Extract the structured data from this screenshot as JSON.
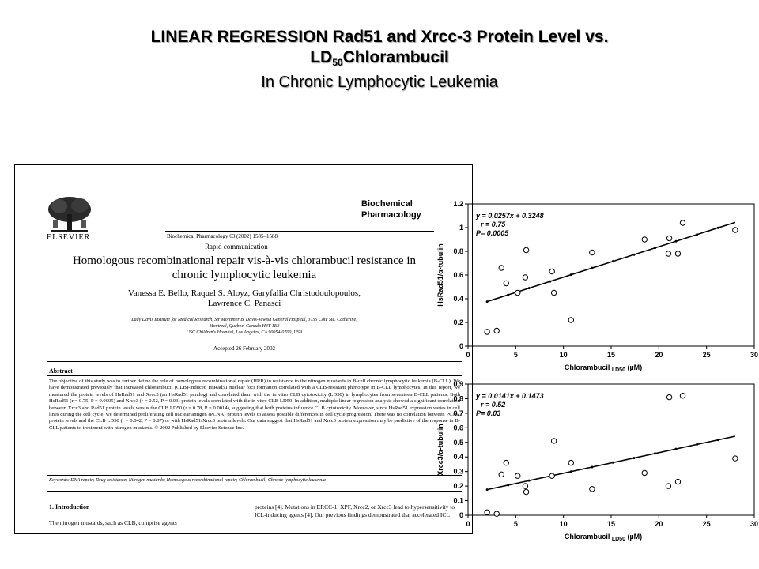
{
  "slide": {
    "title_line1": "LINEAR REGRESSION Rad51 and Xrcc-3 Protein Level vs.",
    "title_line2_pre": "LD",
    "title_line2_sub": "50",
    "title_line2_post": "Chlorambucil",
    "subtitle": "In Chronic Lymphocytic Leukemia"
  },
  "paper": {
    "publisher": "ELSEVIER",
    "journal_line1": "Biochemical",
    "journal_line2": "Pharmacology",
    "citation": "Biochemical Pharmacology 63 (2002) 1585–1588",
    "section": "Rapid communication",
    "title": "Homologous recombinational repair vis-à-vis chlorambucil resistance in chronic lymphocytic leukemia",
    "authors_line1": "Vanessa E. Bello, Raquel S. Aloyz, Garyfallia Christodoulopoulos,",
    "authors_line2": "Lawrence C. Panasci",
    "affiliation_line1": "Lady Davis Institute for Medical Research, Sir Mortimer B. Davis-Jewish General Hospital, 3755 Côte Ste. Catherine,",
    "affiliation_line2": "Montreal, Quebec, Canada H3T-1E2",
    "affiliation_line3": "USC Children's Hospital, Los Angeles, CA 90054-0700, USA",
    "accepted": "Accepted 26 February 2002",
    "abstract_heading": "Abstract",
    "abstract_text": "The objective of this study was to further define the role of homologous recombinational repair (HRR) in resistance to the nitrogen mustards in B-cell chronic lymphocytic leukemia (B-CLL). We have demonstrated previously that increased chlorambucil (CLB)-induced HsRad51 nuclear foci formation correlated with a CLB-resistant phenotype in B-CLL lymphocytes. In this report, we measured the protein levels of HsRad51 and Xrcc3 (an HsRad51 paralog) and correlated them with the in vitro CLB cytotoxicity (LD50) in lymphocytes from seventeen B-CLL patients. Both HsRad51 (r = 0.75, P = 0.0005) and Xrcc3 (r = 0.52, P = 0.03) protein levels correlated with the in vitro CLB LD50. In addition, multiple linear regression analysis showed a significant correlation between Xrcc3 and Rad51 protein levels versus the CLB LD50 (r = 0.78, P = 0.0014), suggesting that both proteins influence CLB cytotoxicity. Moreover, since HsRad51 expression varies in cell lines during the cell cycle, we determined proliferating cell nuclear antigen (PCNA) protein levels to assess possible differences in cell cycle progression. There was no correlation between PCNA protein levels and the CLB LD50 (r = 0.042, P = 0.87) or with HsRad51/Xrcc3 protein levels. Our data suggest that HsRad51 and Xrcc3 protein expression may be predictive of the response in B-CLL patients to treatment with nitrogen mustards. © 2002 Published by Elsevier Science Inc.",
    "keywords": "Keywords: DNA repair; Drug resistance; Nitrogen mustards; Homologous recombinational repair; Chlorambucil; Chronic lymphocytic leukemia",
    "intro_heading": "1. Introduction",
    "intro_left": "The nitrogen mustards, such as CLB, comprise agents",
    "intro_right": "proteins [4]. Mutations in ERCC-1, XPF, Xrcc2, or Xrcc3 lead to hypersensitivity to ICL-inducing agents [4]. Our previous findings demonstrated that accelerated ICL"
  },
  "chart_data": [
    {
      "type": "scatter",
      "ylabel": "HsRad51/α-tubulin",
      "xlabel_pre": "Chlorambucil",
      "xlabel_sub": "LD50",
      "xlabel_post": "(µM)",
      "equation": "y = 0.0257x + 0.3248",
      "r_text": "r = 0.75",
      "p_text": "P= 0.0005",
      "xlim": [
        0,
        30
      ],
      "ylim": [
        0,
        1.2
      ],
      "xticks": [
        "0",
        "5",
        "10",
        "15",
        "20",
        "25",
        "30"
      ],
      "yticks": [
        "0",
        "0.2",
        "0.4",
        "0.6",
        "0.8",
        "1",
        "1.2"
      ],
      "fit": {
        "slope": 0.0257,
        "intercept": 0.3248,
        "x_range": [
          2,
          28
        ]
      },
      "points": [
        {
          "x": 2.0,
          "y": 0.12
        },
        {
          "x": 3.0,
          "y": 0.13
        },
        {
          "x": 3.5,
          "y": 0.66
        },
        {
          "x": 4.0,
          "y": 0.53
        },
        {
          "x": 5.2,
          "y": 0.45
        },
        {
          "x": 6.0,
          "y": 0.58
        },
        {
          "x": 6.1,
          "y": 0.81
        },
        {
          "x": 8.8,
          "y": 0.63
        },
        {
          "x": 9.0,
          "y": 0.45
        },
        {
          "x": 10.8,
          "y": 0.22
        },
        {
          "x": 13.0,
          "y": 0.79
        },
        {
          "x": 18.5,
          "y": 0.9
        },
        {
          "x": 21.0,
          "y": 0.78
        },
        {
          "x": 21.1,
          "y": 0.91
        },
        {
          "x": 22.0,
          "y": 0.78
        },
        {
          "x": 22.5,
          "y": 1.04
        },
        {
          "x": 28.0,
          "y": 0.98
        }
      ]
    },
    {
      "type": "scatter",
      "ylabel": "Xrcc3/α-tubulin",
      "xlabel_pre": "Chlorambucil",
      "xlabel_sub": "LD50",
      "xlabel_post": "(µM)",
      "equation": "y = 0.0141x + 0.1473",
      "r_text": "r = 0.52",
      "p_text": "P= 0.03",
      "xlim": [
        0,
        30
      ],
      "ylim": [
        0,
        0.9
      ],
      "xticks": [
        "0",
        "5",
        "10",
        "15",
        "20",
        "25",
        "30"
      ],
      "yticks": [
        "0",
        "0.1",
        "0.2",
        "0.3",
        "0.4",
        "0.5",
        "0.6",
        "0.7",
        "0.8",
        "0.9"
      ],
      "fit": {
        "slope": 0.0141,
        "intercept": 0.1473,
        "x_range": [
          2,
          28
        ]
      },
      "points": [
        {
          "x": 2.0,
          "y": 0.02
        },
        {
          "x": 3.0,
          "y": 0.01
        },
        {
          "x": 3.5,
          "y": 0.28
        },
        {
          "x": 4.0,
          "y": 0.36
        },
        {
          "x": 5.2,
          "y": 0.27
        },
        {
          "x": 6.0,
          "y": 0.2
        },
        {
          "x": 6.1,
          "y": 0.16
        },
        {
          "x": 8.8,
          "y": 0.27
        },
        {
          "x": 9.0,
          "y": 0.51
        },
        {
          "x": 10.8,
          "y": 0.36
        },
        {
          "x": 13.0,
          "y": 0.18
        },
        {
          "x": 18.5,
          "y": 0.29
        },
        {
          "x": 21.0,
          "y": 0.2
        },
        {
          "x": 21.1,
          "y": 0.81
        },
        {
          "x": 22.0,
          "y": 0.23
        },
        {
          "x": 22.5,
          "y": 0.82
        },
        {
          "x": 28.0,
          "y": 0.39
        }
      ]
    }
  ]
}
